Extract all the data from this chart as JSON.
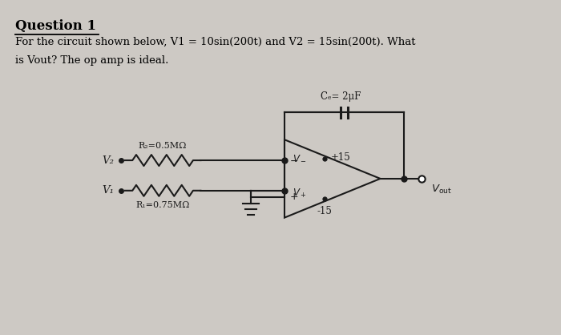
{
  "bg_color": "#cdc9c4",
  "title": "Question 1",
  "line1": "For the circuit shown below, V1 = 10sin(200t) and V2 = 15sin(200t). What",
  "line2": "is Vout? The op amp is ideal.",
  "cf_label": "Cₑ= 2μF",
  "r2_label": "R₂=0.5MΩ",
  "r1_label": "R₁=0.75MΩ",
  "v2_label": "V₂",
  "v1_label": "V₁",
  "plus15": "+15",
  "minus15": "-15",
  "circuit_color": "#1a1a1a"
}
